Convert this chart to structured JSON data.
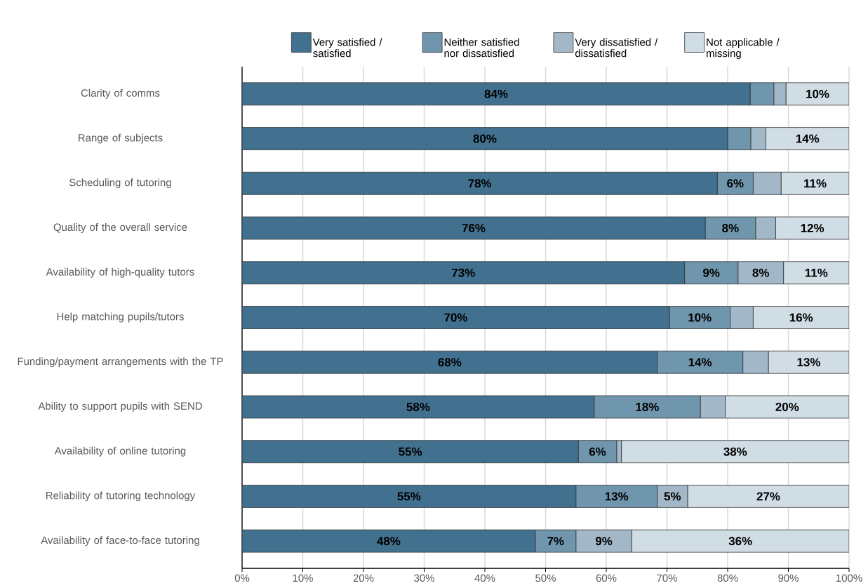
{
  "chart_data": {
    "type": "bar",
    "orientation": "horizontal",
    "stacked": true,
    "categories": [
      "Clarity of comms",
      "Range of subjects",
      "Scheduling of tutoring",
      "Quality of the overall service",
      "Availability of high-quality tutors",
      "Help matching pupils/tutors",
      "Funding/payment arrangements with the TP",
      "Ability to support pupils with SEND",
      "Availability of online tutoring",
      "Reliability of tutoring technology",
      "Availability of face-to-face tutoring"
    ],
    "series": [
      {
        "name": "Very satisfied / satisfied",
        "color": "#41718f",
        "values": [
          83.7,
          80.0,
          78.3,
          76.3,
          72.9,
          70.4,
          68.4,
          58.0,
          55.4,
          55.0,
          48.3
        ],
        "value_labels": [
          "84%",
          "80%",
          "78%",
          "76%",
          "73%",
          "70%",
          "68%",
          "58%",
          "55%",
          "55%",
          "48%"
        ]
      },
      {
        "name": "Neither satisfied nor dissatisfied",
        "color": "#7096ae",
        "values": [
          3.9,
          3.8,
          5.9,
          8.3,
          8.8,
          10.0,
          14.1,
          17.5,
          6.3,
          13.4,
          6.7
        ],
        "value_labels": [
          null,
          null,
          "6%",
          "8%",
          "9%",
          "10%",
          "14%",
          "18%",
          "6%",
          "13%",
          "7%"
        ]
      },
      {
        "name": "Very dissatisfied / dissatisfied",
        "color": "#a2b8c8",
        "values": [
          2.0,
          2.5,
          4.6,
          3.3,
          7.5,
          3.8,
          4.2,
          4.1,
          0.8,
          5.0,
          9.2
        ],
        "value_labels": [
          null,
          null,
          null,
          null,
          "8%",
          null,
          null,
          null,
          null,
          "5%",
          "9%"
        ]
      },
      {
        "name": "Not applicable / missing",
        "color": "#d0dde5",
        "values": [
          10.4,
          13.7,
          11.2,
          12.1,
          10.8,
          15.8,
          13.3,
          20.4,
          37.5,
          26.6,
          35.8
        ],
        "value_labels": [
          "10%",
          "14%",
          "11%",
          "12%",
          "11%",
          "16%",
          "13%",
          "20%",
          "38%",
          "27%",
          "36%"
        ]
      }
    ],
    "xlim": [
      0,
      100
    ],
    "xticks": [
      {
        "value": 0,
        "label": "0%"
      },
      {
        "value": 10,
        "label": "10%"
      },
      {
        "value": 20,
        "label": "20%"
      },
      {
        "value": 30,
        "label": "30%"
      },
      {
        "value": 40,
        "label": "40%"
      },
      {
        "value": 50,
        "label": "50%"
      },
      {
        "value": 60,
        "label": "60%"
      },
      {
        "value": 70,
        "label": "70%"
      },
      {
        "value": 80,
        "label": "80%"
      },
      {
        "value": 90,
        "label": "90%"
      },
      {
        "value": 100,
        "label": "100%"
      }
    ],
    "grid": "x",
    "legend": "top"
  }
}
